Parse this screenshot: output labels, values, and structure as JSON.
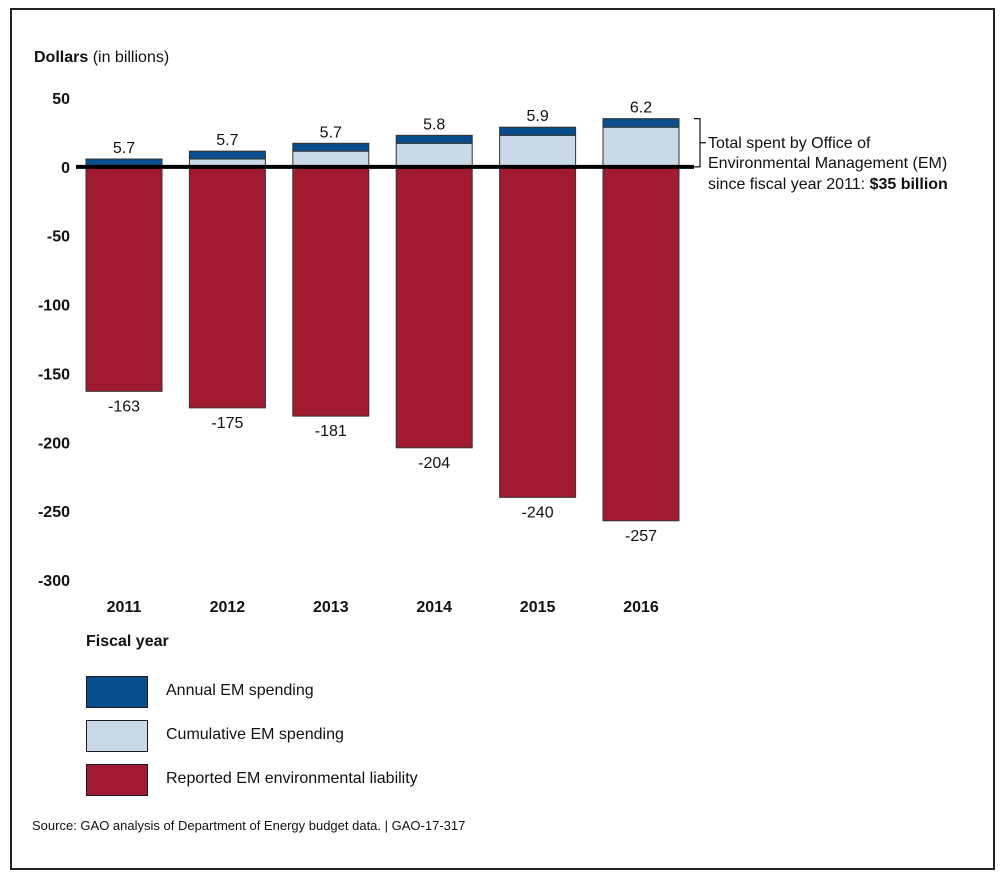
{
  "chart_data": {
    "type": "bar",
    "title": "",
    "ylabel_bold": "Dollars",
    "ylabel_rest": " (in billions)",
    "xlabel": "Fiscal year",
    "categories": [
      "2011",
      "2012",
      "2013",
      "2014",
      "2015",
      "2016"
    ],
    "y_ticks": [
      "50",
      "0",
      "-50",
      "-100",
      "-150",
      "-200",
      "-250",
      "-300"
    ],
    "ylim": [
      -300,
      50
    ],
    "grid": false,
    "series": [
      {
        "name": "Annual EM spending",
        "values": [
          5.7,
          5.7,
          5.7,
          5.8,
          5.9,
          6.2
        ],
        "labels": [
          "5.7",
          "5.7",
          "5.7",
          "5.8",
          "5.9",
          "6.2"
        ],
        "color": "#0a4d8c"
      },
      {
        "name": "Cumulative EM spending",
        "values": [
          0,
          5.7,
          11.4,
          17.1,
          22.9,
          28.8
        ],
        "color": "#c9d9e8"
      },
      {
        "name": "Reported EM environmental liability",
        "values": [
          -163,
          -175,
          -181,
          -204,
          -240,
          -257
        ],
        "labels": [
          "-163",
          "-175",
          "-181",
          "-204",
          "-240",
          "-257"
        ],
        "color": "#a01a30"
      }
    ],
    "annotation": {
      "line1": "Total spent by Office of",
      "line2": "Environmental Management (EM)",
      "line3_text": "since fiscal year 2011: ",
      "line3_bold": "$35 billion"
    },
    "legend_position": "bottom-left"
  },
  "source": "Source: GAO analysis of Department of Energy budget data.  |  GAO-17-317"
}
